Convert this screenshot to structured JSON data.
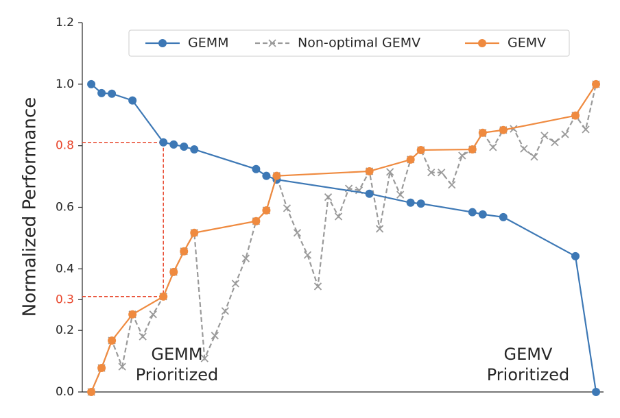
{
  "chart_data": {
    "type": "line",
    "y_label": "Normalized Performance",
    "ylim": [
      0,
      1.2
    ],
    "yticks": [
      {
        "value": 0,
        "label": "0.0"
      },
      0.2,
      0.3,
      0.4,
      0.6,
      0.8,
      {
        "value": 1,
        "label": "1.0"
      },
      1.2
    ],
    "ytick_colors": [
      null,
      null,
      "#e8472d",
      null,
      null,
      "#e8472d",
      null,
      null
    ],
    "xlim": [
      -0.87,
      49.73
    ],
    "legend": "top",
    "reference": {
      "series": [
        0,
        2
      ],
      "point": 4,
      "color": "#e8472d"
    },
    "annotations": [
      {
        "lines": [
          "GEMM",
          "Prioritized"
        ],
        "corner": "bottom-left"
      },
      {
        "lines": [
          "GEMV",
          "Prioritized"
        ],
        "corner": "bottom-right"
      }
    ],
    "series": [
      {
        "name": "GEMM",
        "color": "#3d78b5",
        "style": "solid",
        "marker": "circle",
        "x": [
          0,
          1,
          2,
          4,
          7,
          8,
          9,
          10,
          16,
          17,
          18,
          27,
          31,
          32,
          37,
          38,
          40,
          47,
          49
        ],
        "values": [
          1.0,
          0.971,
          0.969,
          0.947,
          0.811,
          0.804,
          0.797,
          0.788,
          0.724,
          0.702,
          0.69,
          0.644,
          0.615,
          0.612,
          0.584,
          0.577,
          0.568,
          0.441,
          0.0
        ]
      },
      {
        "name": "Non-optimal GEMV",
        "color": "#9a9a9a",
        "style": "dashed",
        "marker": "x",
        "x": [
          0,
          1,
          2,
          3,
          4,
          5,
          6,
          7,
          8,
          9,
          10,
          11,
          12,
          13,
          14,
          15,
          16,
          17,
          18,
          19,
          20,
          21,
          22,
          23,
          24,
          25,
          26,
          27,
          28,
          29,
          30,
          31,
          32,
          33,
          34,
          35,
          36,
          37,
          38,
          39,
          40,
          41,
          42,
          43,
          44,
          45,
          46,
          47,
          48,
          49
        ],
        "values": [
          0.0,
          0.078,
          0.167,
          0.082,
          0.252,
          0.18,
          0.252,
          0.31,
          0.39,
          0.457,
          0.517,
          0.109,
          0.183,
          0.263,
          0.352,
          0.434,
          0.555,
          0.59,
          0.702,
          0.597,
          0.517,
          0.445,
          0.343,
          0.633,
          0.57,
          0.661,
          0.655,
          0.717,
          0.53,
          0.715,
          0.641,
          0.755,
          0.786,
          0.713,
          0.713,
          0.673,
          0.768,
          0.788,
          0.842,
          0.795,
          0.851,
          0.855,
          0.79,
          0.764,
          0.833,
          0.811,
          0.837,
          0.898,
          0.853,
          1.0
        ]
      },
      {
        "name": "GEMV",
        "color": "#ef8a3f",
        "style": "solid",
        "marker": "circle",
        "x": [
          0,
          1,
          2,
          4,
          7,
          8,
          9,
          10,
          16,
          17,
          18,
          27,
          31,
          32,
          37,
          38,
          40,
          47,
          49
        ],
        "values": [
          0.0,
          0.078,
          0.167,
          0.252,
          0.31,
          0.39,
          0.457,
          0.517,
          0.555,
          0.59,
          0.702,
          0.717,
          0.755,
          0.786,
          0.788,
          0.842,
          0.851,
          0.898,
          1.0
        ]
      }
    ]
  }
}
